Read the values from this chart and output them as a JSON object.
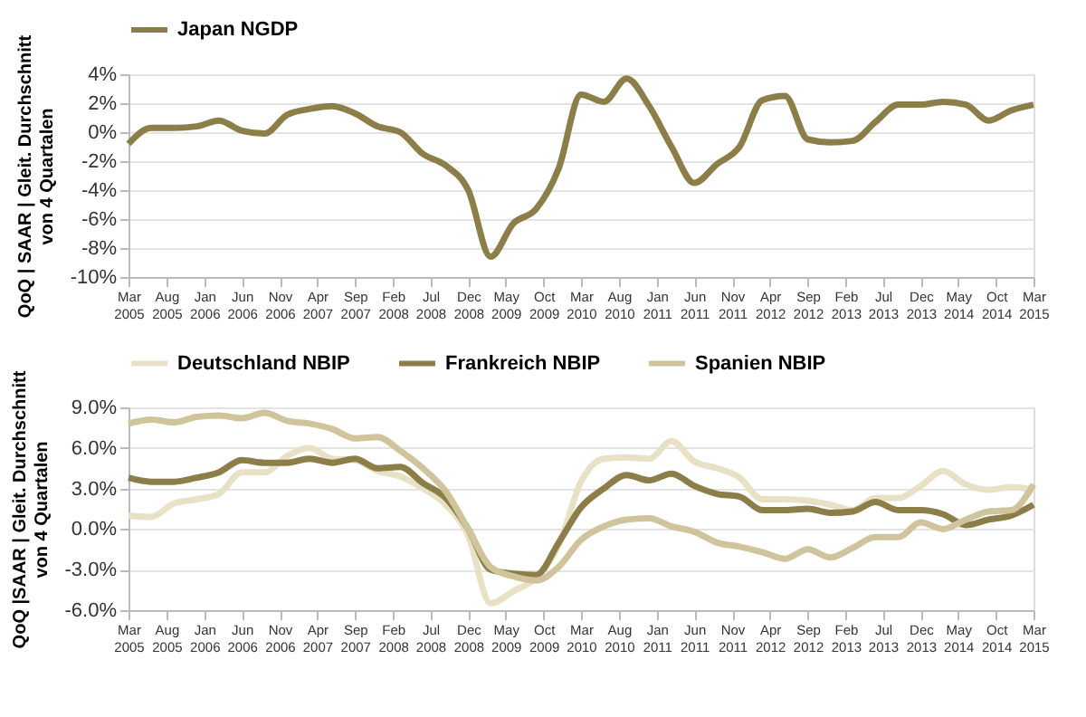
{
  "chart_data": [
    {
      "type": "line",
      "ylabel": "QoQ | SAAR | Gleit. Durchschnitt\nvon 4 Quartalen",
      "x": [
        "2005-03",
        "2005-06",
        "2005-09",
        "2005-12",
        "2006-03",
        "2006-06",
        "2006-09",
        "2006-12",
        "2007-03",
        "2007-06",
        "2007-09",
        "2007-12",
        "2008-03",
        "2008-06",
        "2008-09",
        "2008-12",
        "2009-03",
        "2009-06",
        "2009-09",
        "2009-12",
        "2010-03",
        "2010-06",
        "2010-09",
        "2010-12",
        "2011-03",
        "2011-06",
        "2011-09",
        "2011-12",
        "2012-03",
        "2012-06",
        "2012-09",
        "2012-12",
        "2013-03",
        "2013-06",
        "2013-09",
        "2013-12",
        "2014-03",
        "2014-06",
        "2014-09",
        "2014-12",
        "2015-03"
      ],
      "series": [
        {
          "name": "Japan NGDP",
          "color": "#8c7e48",
          "values": [
            -0.8,
            0.3,
            0.3,
            0.4,
            0.8,
            0.1,
            -0.1,
            1.2,
            1.6,
            1.8,
            1.3,
            0.4,
            0.0,
            -1.5,
            -2.3,
            -4.0,
            -8.6,
            -6.3,
            -5.3,
            -2.5,
            2.6,
            2.1,
            3.7,
            1.8,
            -1.0,
            -3.5,
            -2.2,
            -1.0,
            2.2,
            2.5,
            -0.5,
            -0.7,
            -0.6,
            0.7,
            1.9,
            1.9,
            2.1,
            1.9,
            0.8,
            1.5,
            1.9
          ]
        }
      ],
      "xlim": [
        "2005-03",
        "2015-03"
      ],
      "xticks": [
        {
          "value": "2005-03",
          "label": "Mar 2005"
        },
        {
          "value": "2005-08",
          "label": "Aug 2005"
        },
        {
          "value": "2006-01",
          "label": "Jan 2006"
        },
        {
          "value": "2006-06",
          "label": "Jun 2006"
        },
        {
          "value": "2006-11",
          "label": "Nov 2006"
        },
        {
          "value": "2007-04",
          "label": "Apr 2007"
        },
        {
          "value": "2007-09",
          "label": "Sep 2007"
        },
        {
          "value": "2008-02",
          "label": "Feb 2008"
        },
        {
          "value": "2008-07",
          "label": "Jul 2008"
        },
        {
          "value": "2008-12",
          "label": "Dec 2008"
        },
        {
          "value": "2009-05",
          "label": "May 2009"
        },
        {
          "value": "2009-10",
          "label": "Oct 2009"
        },
        {
          "value": "2010-03",
          "label": "Mar 2010"
        },
        {
          "value": "2010-08",
          "label": "Aug 2010"
        },
        {
          "value": "2011-01",
          "label": "Jan 2011"
        },
        {
          "value": "2011-06",
          "label": "Jun 2011"
        },
        {
          "value": "2011-11",
          "label": "Nov 2011"
        },
        {
          "value": "2012-04",
          "label": "Apr 2012"
        },
        {
          "value": "2012-09",
          "label": "Sep 2012"
        },
        {
          "value": "2013-02",
          "label": "Feb 2013"
        },
        {
          "value": "2013-07",
          "label": "Jul 2013"
        },
        {
          "value": "2013-12",
          "label": "Dec 2013"
        },
        {
          "value": "2014-05",
          "label": "May 2014"
        },
        {
          "value": "2014-10",
          "label": "Oct 2014"
        },
        {
          "value": "2015-03",
          "label": "Mar 2015"
        }
      ],
      "ylim": [
        -10,
        4
      ],
      "yticks": [
        {
          "value": -10,
          "label": "-10%"
        },
        {
          "value": -8,
          "label": "-8%"
        },
        {
          "value": -6,
          "label": "-6%"
        },
        {
          "value": -4,
          "label": "-4%"
        },
        {
          "value": -2,
          "label": "-2%"
        },
        {
          "value": 0,
          "label": "0%"
        },
        {
          "value": 2,
          "label": "2%"
        },
        {
          "value": 4,
          "label": "4%"
        }
      ],
      "grid": "y",
      "legend": "top",
      "line_style": "solid",
      "marker": "none"
    },
    {
      "type": "line",
      "ylabel": "QoQ |SAAR | Gleit. Durchschnitt\nvon 4 Quartalen",
      "x": [
        "2005-03",
        "2005-06",
        "2005-09",
        "2005-12",
        "2006-03",
        "2006-06",
        "2006-09",
        "2006-12",
        "2007-03",
        "2007-06",
        "2007-09",
        "2007-12",
        "2008-03",
        "2008-06",
        "2008-09",
        "2008-12",
        "2009-03",
        "2009-06",
        "2009-09",
        "2009-12",
        "2010-03",
        "2010-06",
        "2010-09",
        "2010-12",
        "2011-03",
        "2011-06",
        "2011-09",
        "2011-12",
        "2012-03",
        "2012-06",
        "2012-09",
        "2012-12",
        "2013-03",
        "2013-06",
        "2013-09",
        "2013-12",
        "2014-03",
        "2014-06",
        "2014-09",
        "2014-12",
        "2015-03"
      ],
      "series": [
        {
          "name": "Deutschland NBIP",
          "color": "#e8e1c6",
          "values": [
            1.0,
            0.9,
            1.9,
            2.2,
            2.6,
            4.2,
            4.2,
            5.4,
            6.0,
            5.2,
            5.1,
            4.3,
            3.9,
            3.0,
            1.8,
            -0.5,
            -5.5,
            -4.6,
            -3.6,
            -1.2,
            3.5,
            5.2,
            5.3,
            5.2,
            6.5,
            5.0,
            4.5,
            3.8,
            2.2,
            2.2,
            2.1,
            1.8,
            1.4,
            2.3,
            2.3,
            3.2,
            4.3,
            3.3,
            2.9,
            3.1,
            2.9
          ]
        },
        {
          "name": "Frankreich NBIP",
          "color": "#8c7e48",
          "values": [
            3.8,
            3.5,
            3.5,
            3.8,
            4.2,
            5.1,
            4.9,
            4.9,
            5.2,
            4.9,
            5.2,
            4.5,
            4.6,
            3.4,
            2.3,
            0.0,
            -3.0,
            -3.3,
            -3.4,
            -1.0,
            1.6,
            3.0,
            4.0,
            3.6,
            4.1,
            3.2,
            2.6,
            2.4,
            1.4,
            1.4,
            1.5,
            1.2,
            1.3,
            2.0,
            1.4,
            1.4,
            1.1,
            0.3,
            0.7,
            1.0,
            1.8
          ]
        },
        {
          "name": "Spanien NBIP",
          "color": "#cfc49b",
          "values": [
            7.8,
            8.1,
            7.9,
            8.3,
            8.4,
            8.2,
            8.6,
            8.0,
            7.8,
            7.4,
            6.7,
            6.8,
            5.8,
            4.5,
            2.8,
            0.0,
            -2.8,
            -3.5,
            -3.8,
            -2.8,
            -0.8,
            0.2,
            0.7,
            0.8,
            0.2,
            -0.2,
            -1.0,
            -1.3,
            -1.7,
            -2.2,
            -1.5,
            -2.1,
            -1.4,
            -0.6,
            -0.6,
            0.5,
            0.0,
            0.7,
            1.3,
            1.4,
            3.3
          ]
        }
      ],
      "xlim": [
        "2005-03",
        "2015-03"
      ],
      "xticks": [
        {
          "value": "2005-03",
          "label": "Mar 2005"
        },
        {
          "value": "2005-08",
          "label": "Aug 2005"
        },
        {
          "value": "2006-01",
          "label": "Jan 2006"
        },
        {
          "value": "2006-06",
          "label": "Jun 2006"
        },
        {
          "value": "2006-11",
          "label": "Nov 2006"
        },
        {
          "value": "2007-04",
          "label": "Apr 2007"
        },
        {
          "value": "2007-09",
          "label": "Sep 2007"
        },
        {
          "value": "2008-02",
          "label": "Feb 2008"
        },
        {
          "value": "2008-07",
          "label": "Jul 2008"
        },
        {
          "value": "2008-12",
          "label": "Dec 2008"
        },
        {
          "value": "2009-05",
          "label": "May 2009"
        },
        {
          "value": "2009-10",
          "label": "Oct 2009"
        },
        {
          "value": "2010-03",
          "label": "Mar 2010"
        },
        {
          "value": "2010-08",
          "label": "Aug 2010"
        },
        {
          "value": "2011-01",
          "label": "Jan 2011"
        },
        {
          "value": "2011-06",
          "label": "Jun 2011"
        },
        {
          "value": "2011-11",
          "label": "Nov 2011"
        },
        {
          "value": "2012-04",
          "label": "Apr 2012"
        },
        {
          "value": "2012-09",
          "label": "Sep 2012"
        },
        {
          "value": "2013-02",
          "label": "Feb 2013"
        },
        {
          "value": "2013-07",
          "label": "Jul 2013"
        },
        {
          "value": "2013-12",
          "label": "Dec 2013"
        },
        {
          "value": "2014-05",
          "label": "May 2014"
        },
        {
          "value": "2014-10",
          "label": "Oct 2014"
        },
        {
          "value": "2015-03",
          "label": "Mar 2015"
        }
      ],
      "ylim": [
        -6,
        9
      ],
      "yticks": [
        {
          "value": -6,
          "label": "-6.0%"
        },
        {
          "value": -3,
          "label": "-3.0%"
        },
        {
          "value": 0,
          "label": "0.0%"
        },
        {
          "value": 3,
          "label": "3.0%"
        },
        {
          "value": 6,
          "label": "6.0%"
        },
        {
          "value": 9,
          "label": "9.0%"
        }
      ],
      "grid": "y",
      "legend": "top",
      "line_style": "solid",
      "marker": "none"
    }
  ]
}
